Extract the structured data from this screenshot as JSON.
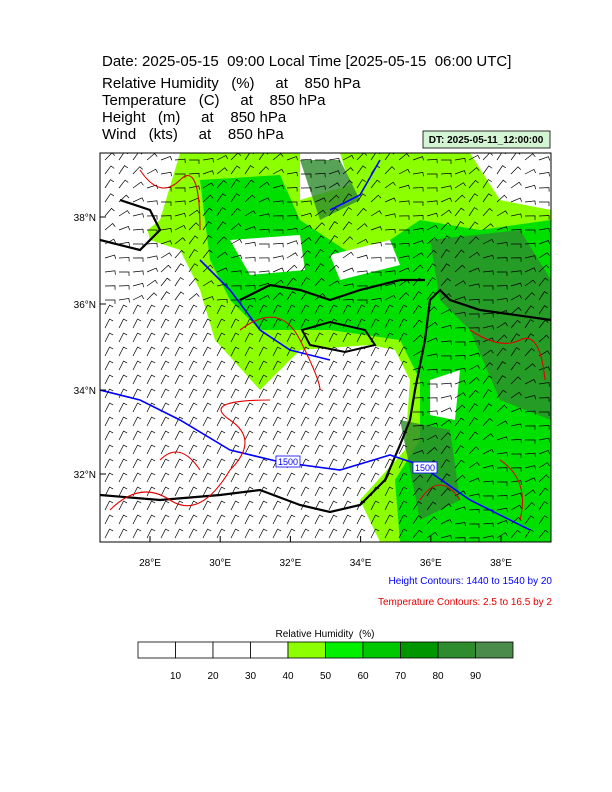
{
  "title": "Date: 2025-05-15  09:00 Local Time [2025-05-15  06:00 UTC]",
  "fields": [
    "Relative Humidity   (%)     at    850 hPa",
    "Temperature   (C)     at    850 hPa",
    "Height   (m)     at    850 hPa",
    "Wind   (kts)     at    850 hPa"
  ],
  "dt_label": "DT: 2025-05-11_12:00:00",
  "lat_labels": [
    "38°N",
    "36°N",
    "34°N",
    "32°N"
  ],
  "lon_labels": [
    "28°E",
    "30°E",
    "32°E",
    "34°E",
    "36°E",
    "38°E"
  ],
  "contour_labels": [
    "1500",
    "1500"
  ],
  "height_contours": "Height Contours: 1440 to 1540 by 20",
  "temperature_contours": "Temperature Contours: 2.5 to 16.5 by 2",
  "colorbar": {
    "title": "Relative Humidity  (%)",
    "labels": [
      "10",
      "20",
      "30",
      "40",
      "50",
      "60",
      "70",
      "80",
      "90"
    ],
    "colors": [
      "#ffffff",
      "#ffffff",
      "#ffffff",
      "#ffffff",
      "#8cff00",
      "#00f000",
      "#00c800",
      "#009600",
      "#2e8b2e",
      "#4a8a4a"
    ]
  }
}
